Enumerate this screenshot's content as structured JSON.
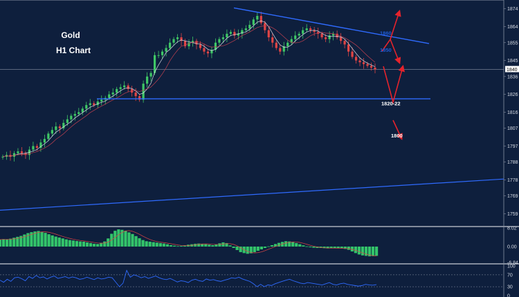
{
  "chart_data": [
    {
      "type": "candlestick",
      "title": "Gold",
      "subtitle": "H1 Chart",
      "ylim": [
        1753,
        1877
      ],
      "current_price_label": "1840",
      "y_ticks": [
        "1874",
        "1864",
        "1855",
        "1845",
        "1836",
        "1826",
        "1816",
        "1807",
        "1797",
        "1788",
        "1778",
        "1769",
        "1759"
      ],
      "y_tick_values": [
        1874,
        1864,
        1855,
        1845,
        1836,
        1826,
        1816,
        1807,
        1797,
        1788,
        1778,
        1769,
        1759
      ],
      "current_price": 1840,
      "annotations": [
        {
          "text": "1860",
          "price": 1860.5,
          "color": "#1e5bd6"
        },
        {
          "text": "1850",
          "price": 1851,
          "color": "#1e5bd6"
        },
        {
          "text": "1820-22",
          "price": 1821,
          "color": "#ffffff"
        },
        {
          "text": "1800",
          "price": 1803,
          "color": "#ffffff"
        }
      ],
      "series": [
        {
          "values": [
            1791,
            1792,
            1791,
            1793,
            1794,
            1793,
            1792,
            1795,
            1797,
            1796,
            1799,
            1801,
            1804,
            1806,
            1808,
            1807,
            1810,
            1812,
            1814,
            1815,
            1816,
            1818,
            1820,
            1821,
            1820,
            1822,
            1823,
            1824,
            1826,
            1827,
            1829,
            1830,
            1831,
            1829,
            1827,
            1825,
            1823,
            1832,
            1836,
            1838,
            1848,
            1848,
            1850,
            1852,
            1855,
            1857,
            1858,
            1856,
            1853,
            1855,
            1856,
            1854,
            1852,
            1850,
            1849,
            1851,
            1855,
            1857,
            1858,
            1860,
            1861,
            1859,
            1860,
            1862,
            1863,
            1865,
            1868,
            1870,
            1866,
            1862,
            1858,
            1855,
            1852,
            1850,
            1853,
            1855,
            1857,
            1859,
            1860,
            1862,
            1863,
            1862,
            1861,
            1860,
            1858,
            1857,
            1859,
            1860,
            1858,
            1856,
            1854,
            1850,
            1847,
            1845,
            1844,
            1843,
            1842,
            1841,
            1840
          ]
        }
      ]
    },
    {
      "type": "bar",
      "ylim": [
        -6.84,
        8.02
      ],
      "y_ticks": [
        "8.02",
        "0.00",
        "-6.84"
      ],
      "y_tick_values": [
        8.02,
        0.0,
        -6.84
      ],
      "values": [
        3,
        3.2,
        3.1,
        3.4,
        3.8,
        4.2,
        4.6,
        5.2,
        5.8,
        6.2,
        6.5,
        6.7,
        6.4,
        5.9,
        5.3,
        4.8,
        4.3,
        3.9,
        3.5,
        3.1,
        2.8,
        2.6,
        2.4,
        2.2,
        2.1,
        1.8,
        1.5,
        1.2,
        1.1,
        1.6,
        2.2,
        3.5,
        5.5,
        6.8,
        7.4,
        7.2,
        6.8,
        6.1,
        5.4,
        4.5,
        3.6,
        2.8,
        2.3,
        2.1,
        1.9,
        1.7,
        1.5,
        1.3,
        1,
        0.6,
        0.4,
        0.2,
        0.3,
        0.5,
        0.8,
        1.0,
        1.2,
        1.3,
        1.2,
        1.0,
        0.8,
        0.6,
        0.9,
        1.4,
        1.8,
        1.5,
        0.5,
        -0.6,
        -1.5,
        -2.4,
        -2.8,
        -3.1,
        -2.9,
        -2.4,
        -1.8,
        -1.2,
        -0.6,
        0.1,
        0.6,
        1.1,
        1.6,
        2.0,
        2.3,
        2.2,
        1.9,
        1.5,
        1.0,
        0.5,
        0.1,
        -0.3,
        -0.5,
        -0.6,
        -0.6,
        -0.7,
        -0.8,
        -0.7,
        -0.6,
        -0.7,
        -0.8,
        -1.0,
        -1.4,
        -2.1,
        -2.8,
        -3.4,
        -3.8,
        -4.0,
        -4.2,
        -4.1,
        -4.0
      ]
    },
    {
      "type": "line",
      "ylim": [
        0,
        100
      ],
      "y_ticks": [
        "100",
        "70",
        "30",
        "0"
      ],
      "y_tick_values": [
        100,
        70,
        30,
        0
      ],
      "values": [
        52,
        45,
        55,
        48,
        60,
        62,
        57,
        50,
        64,
        58,
        68,
        60,
        63,
        56,
        62,
        66,
        58,
        61,
        64,
        59,
        63,
        60,
        55,
        57,
        62,
        58,
        54,
        60,
        56,
        58,
        62,
        60,
        45,
        30,
        42,
        85,
        62,
        70,
        66,
        60,
        64,
        58,
        62,
        66,
        60,
        56,
        54,
        58,
        52,
        46,
        50,
        48,
        44,
        52,
        55,
        50,
        48,
        56,
        52,
        54,
        50,
        48,
        52,
        55,
        60,
        58,
        62,
        56,
        52,
        48,
        40,
        30,
        38,
        30,
        36,
        34,
        40,
        44,
        48,
        52,
        55,
        50,
        46,
        42,
        40,
        44,
        42,
        40,
        38,
        36,
        40,
        44,
        38,
        36,
        40,
        42,
        38,
        36,
        34,
        32,
        34,
        38,
        36,
        35,
        37
      ]
    }
  ]
}
